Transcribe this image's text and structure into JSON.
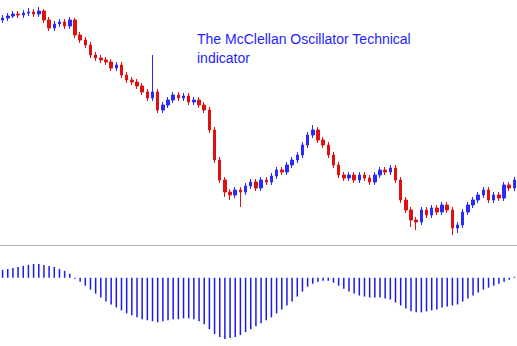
{
  "chart_data": [
    {
      "type": "candlestick",
      "title": "The McClellan Oscillator Technical indicator",
      "ylim": [
        0,
        245
      ],
      "tick_labels": false,
      "grid": false,
      "values": [
        [
          225,
          227,
          222,
          230
        ],
        [
          227,
          229,
          224,
          232
        ],
        [
          229,
          231,
          227,
          234
        ],
        [
          231,
          230,
          227,
          234
        ],
        [
          230,
          232,
          227,
          235
        ],
        [
          232,
          233,
          229,
          237
        ],
        [
          233,
          231,
          228,
          236
        ],
        [
          231,
          234,
          228,
          238
        ],
        [
          234,
          225,
          222,
          236
        ],
        [
          225,
          217,
          214,
          228
        ],
        [
          217,
          221,
          214,
          224
        ],
        [
          221,
          223,
          218,
          226
        ],
        [
          223,
          219,
          216,
          226
        ],
        [
          219,
          225,
          216,
          228
        ],
        [
          225,
          210,
          207,
          227
        ],
        [
          210,
          205,
          202,
          213
        ],
        [
          205,
          200,
          197,
          208
        ],
        [
          200,
          190,
          187,
          203
        ],
        [
          190,
          187,
          184,
          193
        ],
        [
          187,
          185,
          182,
          190
        ],
        [
          185,
          183,
          180,
          188
        ],
        [
          183,
          177,
          174,
          186
        ],
        [
          177,
          180,
          174,
          183
        ],
        [
          180,
          170,
          167,
          183
        ],
        [
          170,
          165,
          162,
          173
        ],
        [
          165,
          163,
          160,
          168
        ],
        [
          163,
          159,
          156,
          166
        ],
        [
          159,
          153,
          150,
          162
        ],
        [
          153,
          147,
          144,
          156
        ],
        [
          147,
          153,
          144,
          190
        ],
        [
          153,
          135,
          132,
          156
        ],
        [
          135,
          140,
          132,
          143
        ],
        [
          140,
          145,
          137,
          148
        ],
        [
          145,
          150,
          142,
          153
        ],
        [
          150,
          147,
          144,
          153
        ],
        [
          147,
          149,
          144,
          152
        ],
        [
          149,
          143,
          140,
          152
        ],
        [
          143,
          145,
          140,
          148
        ],
        [
          145,
          140,
          137,
          148
        ],
        [
          140,
          135,
          132,
          143
        ],
        [
          135,
          115,
          112,
          138
        ],
        [
          115,
          85,
          82,
          118
        ],
        [
          85,
          65,
          62,
          88
        ],
        [
          65,
          53,
          48,
          68
        ],
        [
          53,
          50,
          45,
          56
        ],
        [
          50,
          55,
          47,
          58
        ],
        [
          55,
          53,
          38,
          58
        ],
        [
          53,
          59,
          50,
          62
        ],
        [
          59,
          63,
          56,
          66
        ],
        [
          63,
          57,
          54,
          66
        ],
        [
          57,
          65,
          54,
          68
        ],
        [
          65,
          63,
          60,
          68
        ],
        [
          63,
          69,
          60,
          72
        ],
        [
          69,
          75,
          66,
          78
        ],
        [
          75,
          73,
          70,
          78
        ],
        [
          73,
          80,
          70,
          83
        ],
        [
          80,
          85,
          77,
          88
        ],
        [
          85,
          90,
          82,
          93
        ],
        [
          90,
          100,
          87,
          103
        ],
        [
          100,
          110,
          97,
          113
        ],
        [
          110,
          115,
          107,
          120
        ],
        [
          115,
          105,
          102,
          118
        ],
        [
          105,
          100,
          97,
          108
        ],
        [
          100,
          90,
          87,
          103
        ],
        [
          90,
          80,
          77,
          93
        ],
        [
          80,
          70,
          67,
          83
        ],
        [
          70,
          67,
          64,
          73
        ],
        [
          67,
          70,
          64,
          73
        ],
        [
          70,
          65,
          62,
          73
        ],
        [
          65,
          70,
          62,
          73
        ],
        [
          70,
          67,
          64,
          73
        ],
        [
          67,
          63,
          60,
          70
        ],
        [
          63,
          70,
          60,
          73
        ],
        [
          70,
          75,
          67,
          78
        ],
        [
          75,
          73,
          70,
          78
        ],
        [
          73,
          77,
          70,
          80
        ],
        [
          77,
          65,
          62,
          80
        ],
        [
          65,
          45,
          42,
          68
        ],
        [
          45,
          35,
          32,
          48
        ],
        [
          35,
          25,
          18,
          38
        ],
        [
          25,
          23,
          15,
          28
        ],
        [
          23,
          35,
          20,
          38
        ],
        [
          35,
          30,
          27,
          38
        ],
        [
          30,
          37,
          27,
          40
        ],
        [
          37,
          33,
          30,
          40
        ],
        [
          33,
          40,
          30,
          43
        ],
        [
          40,
          35,
          32,
          43
        ],
        [
          35,
          17,
          10,
          38
        ],
        [
          17,
          20,
          12,
          23
        ],
        [
          20,
          33,
          17,
          36
        ],
        [
          33,
          40,
          30,
          43
        ],
        [
          40,
          45,
          37,
          48
        ],
        [
          45,
          50,
          42,
          53
        ],
        [
          50,
          55,
          47,
          58
        ],
        [
          55,
          45,
          42,
          58
        ],
        [
          45,
          50,
          42,
          53
        ],
        [
          50,
          47,
          44,
          53
        ],
        [
          47,
          60,
          44,
          63
        ],
        [
          60,
          57,
          54,
          63
        ],
        [
          57,
          65,
          54,
          68
        ]
      ]
    },
    {
      "type": "bar",
      "color": "#1a1aee",
      "ylim": [
        -65,
        18
      ],
      "tick_labels": false,
      "grid": false,
      "values": [
        8,
        9,
        10,
        11,
        12,
        13,
        14,
        14,
        13,
        12,
        11,
        9,
        7,
        4,
        -1,
        -4,
        -8,
        -12,
        -16,
        -20,
        -24,
        -27,
        -30,
        -33,
        -36,
        -38,
        -40,
        -42,
        -43,
        -44,
        -45,
        -44,
        -43,
        -42,
        -42,
        -41,
        -41,
        -42,
        -44,
        -47,
        -52,
        -57,
        -60,
        -62,
        -61,
        -60,
        -58,
        -55,
        -52,
        -49,
        -46,
        -43,
        -40,
        -36,
        -32,
        -28,
        -24,
        -19,
        -14,
        -9,
        -6,
        -4,
        -3,
        -3,
        -5,
        -8,
        -11,
        -14,
        -16,
        -18,
        -19,
        -20,
        -20,
        -20,
        -21,
        -22,
        -25,
        -28,
        -31,
        -34,
        -35,
        -35,
        -34,
        -33,
        -32,
        -30,
        -29,
        -28,
        -27,
        -24,
        -21,
        -18,
        -15,
        -12,
        -10,
        -8,
        -6,
        -4,
        -2,
        1
      ]
    }
  ]
}
